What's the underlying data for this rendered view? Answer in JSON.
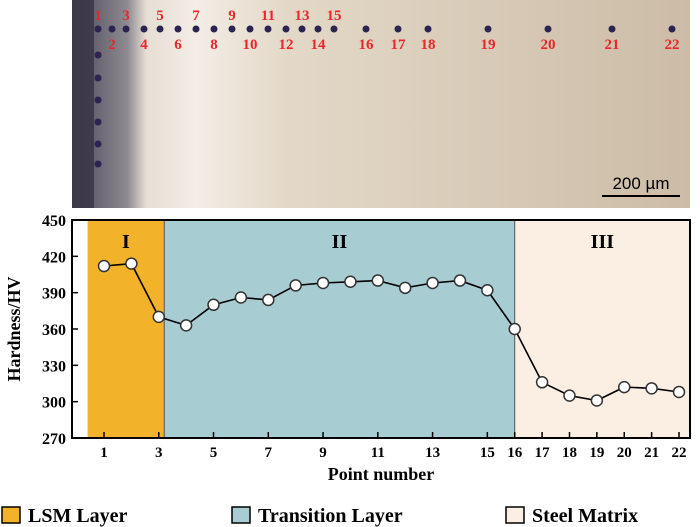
{
  "micrograph": {
    "point_labels": [
      "1",
      "2",
      "3",
      "4",
      "5",
      "6",
      "7",
      "8",
      "9",
      "10",
      "11",
      "12",
      "13",
      "14",
      "15",
      "16",
      "17",
      "18",
      "19",
      "20",
      "21",
      "22"
    ],
    "scale_bar": "200 µm"
  },
  "chart_data": {
    "type": "line",
    "title": "",
    "xlabel": "Point number",
    "ylabel": "Hardness/HV",
    "ylim": [
      270,
      450
    ],
    "yticks": [
      270,
      300,
      330,
      360,
      390,
      420,
      450
    ],
    "xticks": [
      "1",
      "3",
      "5",
      "7",
      "9",
      "11",
      "13",
      "15",
      "16",
      "17",
      "18",
      "19",
      "20",
      "21",
      "22"
    ],
    "x": [
      1,
      2,
      3,
      4,
      5,
      6,
      7,
      8,
      9,
      10,
      11,
      12,
      13,
      14,
      15,
      16,
      17,
      18,
      19,
      20,
      21,
      22
    ],
    "values": [
      412,
      414,
      370,
      363,
      380,
      386,
      384,
      396,
      398,
      399,
      400,
      394,
      398,
      400,
      392,
      360,
      316,
      305,
      301,
      312,
      311,
      308
    ],
    "regions": [
      {
        "label": "I",
        "from_point": 0.4,
        "to_point": 3.2,
        "color": "#f2b22a",
        "legend": "LSM Layer"
      },
      {
        "label": "II",
        "from_point": 3.2,
        "to_point": 16,
        "color": "#a7cdd3",
        "legend": "Transition Layer"
      },
      {
        "label": "III",
        "from_point": 16,
        "to_point": 22.5,
        "color": "#fbeee2",
        "legend": "Steel Matrix"
      }
    ]
  },
  "legend": {
    "items": [
      {
        "label": "LSM Layer",
        "color": "#f2b22a"
      },
      {
        "label": "Transition Layer",
        "color": "#a7cdd3"
      },
      {
        "label": "Steel Matrix",
        "color": "#fbeee2"
      }
    ]
  }
}
